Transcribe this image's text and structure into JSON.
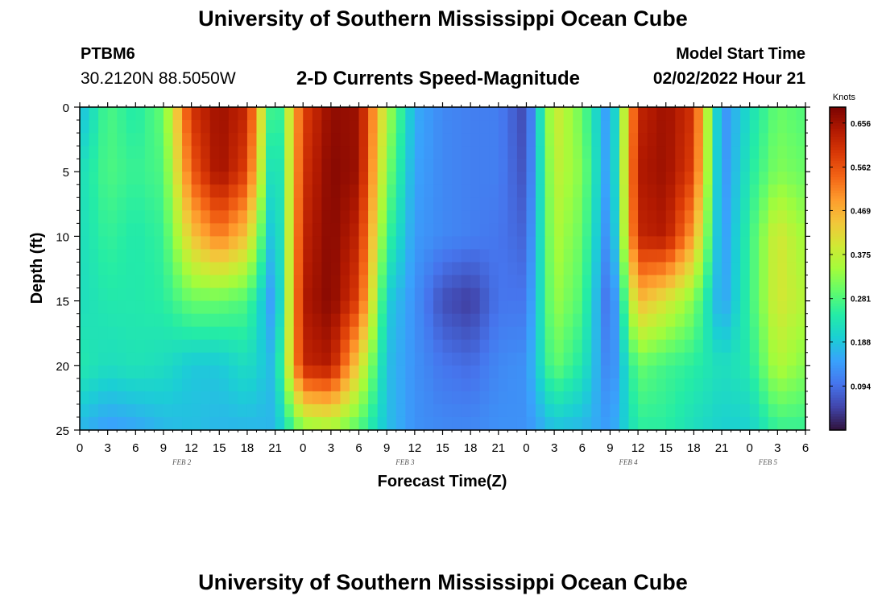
{
  "header": {
    "title": "University of Southern Mississippi Ocean Cube",
    "station": "PTBM6",
    "coordinates": "30.2120N  88.5050W",
    "subtitle": "2-D Currents Speed-Magnitude",
    "model_start_label": "Model Start Time",
    "model_start_value": "02/02/2022 Hour 21"
  },
  "footer": {
    "title": "University of Southern Mississippi Ocean Cube"
  },
  "colorbar": {
    "unit": "Knots",
    "ticks": [
      "0.656",
      "0.562",
      "0.469",
      "0.375",
      "0.281",
      "0.188",
      "0.094"
    ],
    "min": 0.0,
    "max": 0.69,
    "colors": [
      "#30123b",
      "#4145ab",
      "#4675ed",
      "#39a2fc",
      "#1bcfd4",
      "#24eca6",
      "#61fc6c",
      "#a4fc3b",
      "#d1e834",
      "#f3c63a",
      "#fe9b2d",
      "#f36315",
      "#d93806",
      "#b11901",
      "#7a0402"
    ]
  },
  "chart_data": {
    "type": "heatmap",
    "title": "2-D Currents Speed-Magnitude",
    "xlabel": "Forecast Time(Z)",
    "ylabel": "Depth (ft)",
    "x_unit": "hours since Feb 2 00Z",
    "xlim": [
      0,
      78
    ],
    "ylim": [
      25,
      0
    ],
    "x_ticks": [
      "0",
      "3",
      "6",
      "9",
      "12",
      "15",
      "18",
      "21",
      "0",
      "3",
      "6",
      "9",
      "12",
      "15",
      "18",
      "21",
      "0",
      "3",
      "6",
      "9",
      "12",
      "15",
      "18",
      "21",
      "0",
      "3",
      "6"
    ],
    "y_ticks": [
      "0",
      "5",
      "10",
      "15",
      "20",
      "25"
    ],
    "day_labels": [
      {
        "label": "FEB 2",
        "hour": 12
      },
      {
        "label": "FEB 3",
        "hour": 36
      },
      {
        "label": "FEB 4",
        "hour": 60
      },
      {
        "label": "FEB 5",
        "hour": 75
      }
    ],
    "depths": [
      0,
      5,
      10,
      15,
      20,
      25
    ],
    "times": [
      0,
      3,
      6,
      9,
      12,
      15,
      18,
      21,
      24,
      27,
      30,
      33,
      36,
      39,
      42,
      45,
      48,
      51,
      54,
      57,
      60,
      63,
      66,
      69,
      72,
      75,
      78
    ],
    "values": [
      [
        0.17,
        0.28,
        0.24,
        0.3,
        0.6,
        0.66,
        0.62,
        0.2,
        0.58,
        0.67,
        0.66,
        0.36,
        0.16,
        0.12,
        0.11,
        0.11,
        0.05,
        0.4,
        0.3,
        0.12,
        0.62,
        0.66,
        0.6,
        0.12,
        0.22,
        0.3,
        0.28
      ],
      [
        0.22,
        0.28,
        0.26,
        0.28,
        0.55,
        0.66,
        0.58,
        0.16,
        0.6,
        0.68,
        0.66,
        0.32,
        0.15,
        0.12,
        0.11,
        0.11,
        0.06,
        0.38,
        0.32,
        0.12,
        0.64,
        0.66,
        0.58,
        0.12,
        0.24,
        0.32,
        0.3
      ],
      [
        0.22,
        0.26,
        0.24,
        0.26,
        0.44,
        0.52,
        0.44,
        0.14,
        0.62,
        0.68,
        0.62,
        0.27,
        0.14,
        0.12,
        0.11,
        0.1,
        0.08,
        0.36,
        0.3,
        0.1,
        0.62,
        0.64,
        0.48,
        0.13,
        0.26,
        0.4,
        0.34
      ],
      [
        0.22,
        0.24,
        0.24,
        0.25,
        0.3,
        0.3,
        0.28,
        0.12,
        0.64,
        0.68,
        0.58,
        0.2,
        0.13,
        0.06,
        0.04,
        0.1,
        0.1,
        0.34,
        0.28,
        0.07,
        0.46,
        0.4,
        0.32,
        0.14,
        0.26,
        0.4,
        0.36
      ],
      [
        0.24,
        0.22,
        0.23,
        0.22,
        0.19,
        0.19,
        0.22,
        0.17,
        0.62,
        0.64,
        0.42,
        0.18,
        0.13,
        0.1,
        0.09,
        0.12,
        0.13,
        0.3,
        0.24,
        0.1,
        0.3,
        0.27,
        0.25,
        0.22,
        0.24,
        0.36,
        0.32
      ],
      [
        0.17,
        0.14,
        0.15,
        0.17,
        0.18,
        0.17,
        0.17,
        0.17,
        0.32,
        0.34,
        0.28,
        0.18,
        0.13,
        0.12,
        0.12,
        0.13,
        0.13,
        0.18,
        0.17,
        0.14,
        0.25,
        0.25,
        0.22,
        0.2,
        0.2,
        0.26,
        0.26
      ]
    ]
  }
}
